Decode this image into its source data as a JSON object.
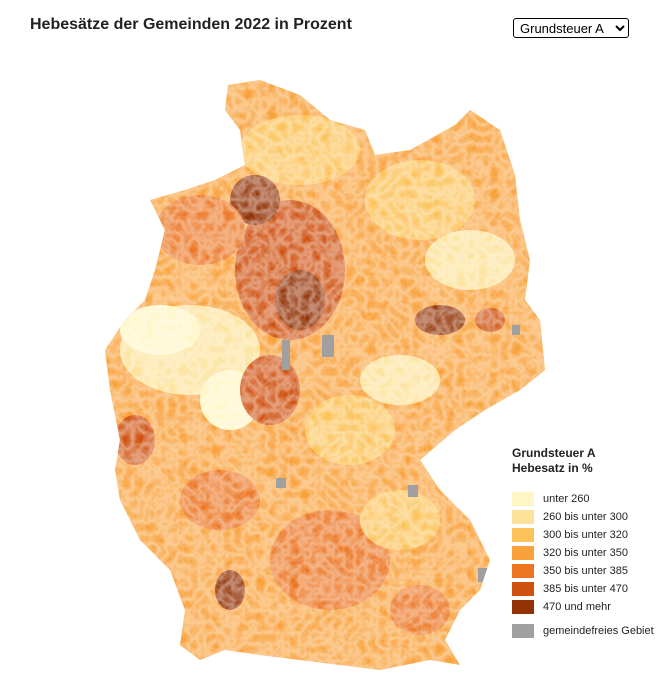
{
  "header": {
    "title": "Hebesätze der Gemeinden 2022 in Prozent",
    "selector": {
      "selected": "Grundsteuer A"
    }
  },
  "legend": {
    "title": "Grundsteuer A Hebesatz in %",
    "items": [
      {
        "label": "unter 260",
        "color": "#fff6c6"
      },
      {
        "label": "260 bis unter 300",
        "color": "#fde29a"
      },
      {
        "label": "300 bis unter 320",
        "color": "#fcc35a"
      },
      {
        "label": "320 bis unter 350",
        "color": "#f9a13a"
      },
      {
        "label": "350 bis unter 385",
        "color": "#ec7522"
      },
      {
        "label": "385 bis unter 470",
        "color": "#cf5110"
      },
      {
        "label": "470 und mehr",
        "color": "#923205"
      },
      {
        "label": "gemeindefreies Gebiet",
        "color": "#a0a0a0"
      }
    ]
  }
}
